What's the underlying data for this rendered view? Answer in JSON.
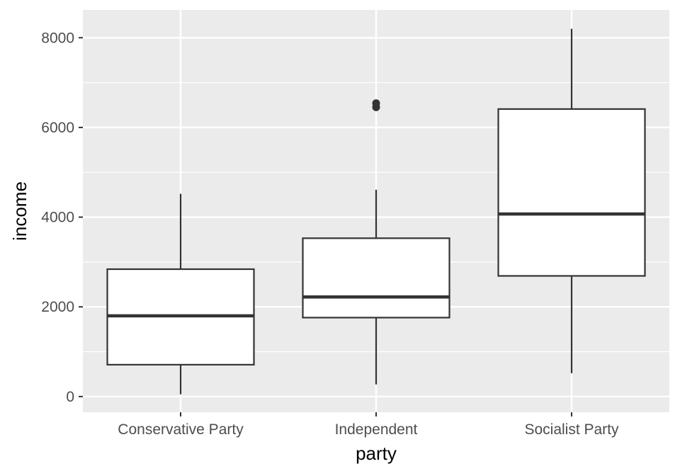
{
  "chart_data": {
    "type": "boxplot",
    "xlabel": "party",
    "ylabel": "income",
    "categories": [
      "Conservative Party",
      "Independent",
      "Socialist Party"
    ],
    "boxes": [
      {
        "category": "Conservative Party",
        "whisker_low": 50,
        "q1": 710,
        "median": 1800,
        "q3": 2840,
        "whisker_high": 4520,
        "outliers": []
      },
      {
        "category": "Independent",
        "whisker_low": 270,
        "q1": 1760,
        "median": 2220,
        "q3": 3530,
        "whisker_high": 4610,
        "outliers": [
          6450,
          6540
        ]
      },
      {
        "category": "Socialist Party",
        "whisker_low": 520,
        "q1": 2690,
        "median": 4070,
        "q3": 6410,
        "whisker_high": 8200,
        "outliers": []
      }
    ],
    "yticks": [
      0,
      2000,
      4000,
      6000,
      8000
    ],
    "ylim": [
      -350,
      8620
    ],
    "grid": true,
    "colors": {
      "panel": "#ebebeb",
      "grid": "#ffffff",
      "box_fill": "#ffffff",
      "box_line": "#333333",
      "tick": "#333333"
    }
  }
}
